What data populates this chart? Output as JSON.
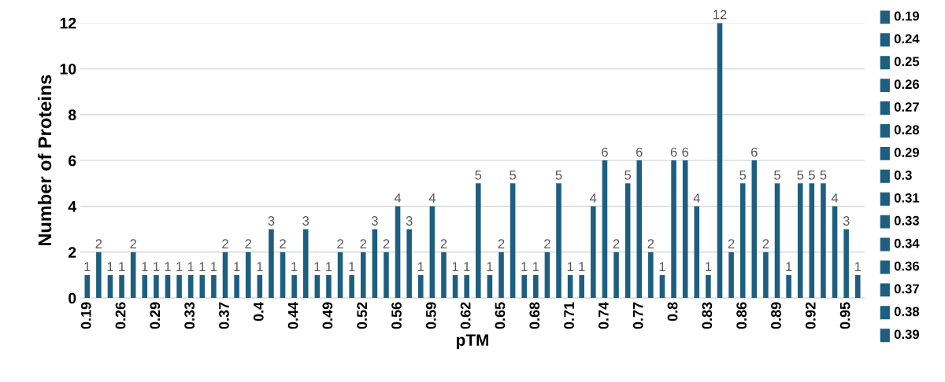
{
  "chart_data": {
    "type": "bar",
    "xlabel": "pTM",
    "ylabel": "Number of Proteins",
    "categories": [
      "0.19",
      null,
      null,
      "0.26",
      null,
      null,
      "0.29",
      null,
      null,
      "0.33",
      null,
      null,
      "0.37",
      null,
      null,
      "0.4",
      null,
      null,
      "0.44",
      null,
      null,
      "0.49",
      null,
      null,
      "0.52",
      null,
      null,
      "0.56",
      null,
      null,
      "0.59",
      null,
      null,
      "0.62",
      null,
      null,
      "0.65",
      null,
      null,
      "0.68",
      null,
      null,
      "0.71",
      null,
      null,
      "0.74",
      null,
      null,
      "0.77",
      null,
      null,
      "0.8",
      null,
      null,
      "0.83",
      null,
      null,
      "0.86",
      null,
      null,
      "0.89",
      null,
      null,
      "0.92",
      null,
      null,
      "0.95",
      null
    ],
    "values": [
      1,
      2,
      1,
      1,
      2,
      1,
      1,
      1,
      1,
      1,
      1,
      1,
      2,
      1,
      2,
      1,
      3,
      2,
      1,
      3,
      1,
      1,
      2,
      1,
      2,
      3,
      2,
      4,
      3,
      1,
      4,
      2,
      1,
      1,
      5,
      1,
      2,
      5,
      1,
      1,
      2,
      5,
      1,
      1,
      4,
      6,
      2,
      5,
      6,
      2,
      1,
      6,
      6,
      4,
      1,
      12,
      2,
      5,
      6,
      2,
      5,
      1,
      5,
      5,
      5,
      4,
      3,
      1
    ],
    "annotations": [
      "0.19",
      "0.24",
      "0.25",
      "0.26",
      "0.27",
      "0.28",
      "0.29",
      "0.3",
      "0.31",
      "0.33",
      "0.34",
      "0.36",
      "0.37",
      "0.38",
      "0.39"
    ],
    "color": "#1d5f80",
    "ylim": [
      0,
      12
    ],
    "yticks": [
      0,
      2,
      4,
      6,
      8,
      10,
      12
    ],
    "grid": "y",
    "data_labels": true
  }
}
